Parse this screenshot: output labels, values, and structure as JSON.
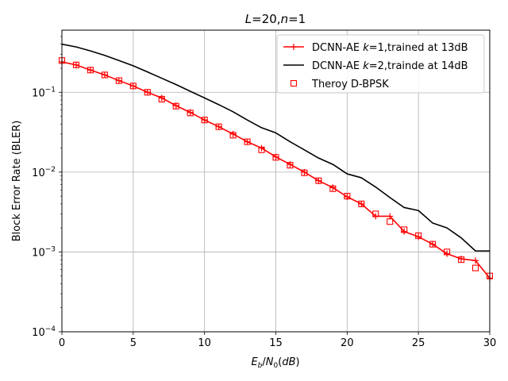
{
  "chart_data": {
    "type": "line",
    "title": "L=20,n=1",
    "title_parts": {
      "L_symbol": "L",
      "L_equals": "=20,",
      "n_symbol": "n",
      "n_equals": "=1"
    },
    "xlabel": "E_b/N_0(dB)",
    "xlabel_parts": {
      "E": "E",
      "b": "b",
      "slash": "/",
      "N": "N",
      "zero": "0",
      "paren_open": "(",
      "dB": "dB",
      "paren_close": ")"
    },
    "ylabel": "Block Error Rate (BLER)",
    "xlim": [
      0,
      30
    ],
    "ylim": [
      0.0001,
      0.6
    ],
    "y_scale": "log",
    "grid": true,
    "legend_position": "top-right",
    "x_ticks": [
      0,
      5,
      10,
      15,
      20,
      25,
      30
    ],
    "x_tick_labels": [
      "0",
      "5",
      "10",
      "15",
      "20",
      "25",
      "30"
    ],
    "y_ticks": [
      0.1,
      0.01,
      0.001,
      0.0001
    ],
    "y_tick_labels": [
      {
        "base": "10",
        "exp": "−1"
      },
      {
        "base": "10",
        "exp": "−2"
      },
      {
        "base": "10",
        "exp": "−3"
      },
      {
        "base": "10",
        "exp": "−4"
      }
    ],
    "series": [
      {
        "name_plain": "DCNN-AE k=1,trained at 13dB",
        "name_parts": {
          "pre": "DCNN-AE ",
          "k": "k",
          "post": "=1,trained at 13dB"
        },
        "color": "#ff0000",
        "style": "line-plus",
        "x": [
          0,
          1,
          2,
          3,
          4,
          5,
          6,
          7,
          8,
          9,
          10,
          11,
          12,
          13,
          14,
          15,
          16,
          17,
          18,
          19,
          20,
          21,
          22,
          23,
          24,
          25,
          26,
          27,
          28,
          29,
          30
        ],
        "y": [
          0.24,
          0.22,
          0.19,
          0.165,
          0.14,
          0.12,
          0.1,
          0.085,
          0.068,
          0.056,
          0.045,
          0.037,
          0.03,
          0.024,
          0.02,
          0.0155,
          0.0125,
          0.01,
          0.0078,
          0.0064,
          0.0049,
          0.004,
          0.0028,
          0.0028,
          0.0018,
          0.00155,
          0.00125,
          0.00095,
          0.00082,
          0.00078,
          0.00047
        ]
      },
      {
        "name_plain": "DCNN-AE k=2,trainde at 14dB",
        "name_parts": {
          "pre": "DCNN-AE ",
          "k": "k",
          "post": "=2,trainde at 14dB"
        },
        "color": "#000000",
        "style": "line",
        "x": [
          0,
          1,
          2,
          3,
          4,
          5,
          6,
          7,
          8,
          9,
          10,
          11,
          12,
          13,
          14,
          15,
          16,
          17,
          18,
          19,
          20,
          21,
          22,
          23,
          24,
          25,
          26,
          27,
          28,
          29,
          30
        ],
        "y": [
          0.4,
          0.37,
          0.33,
          0.29,
          0.25,
          0.215,
          0.18,
          0.15,
          0.125,
          0.103,
          0.085,
          0.07,
          0.057,
          0.045,
          0.036,
          0.031,
          0.024,
          0.019,
          0.015,
          0.0125,
          0.0095,
          0.0085,
          0.0065,
          0.0048,
          0.0036,
          0.0033,
          0.0023,
          0.002,
          0.0015,
          0.00103,
          0.00103
        ]
      },
      {
        "name_plain": "Theroy D-BPSK",
        "name_parts": {
          "pre": "Theroy D-BPSK",
          "k": "",
          "post": ""
        },
        "color": "#ff0000",
        "style": "marker-square",
        "x": [
          0,
          1,
          2,
          3,
          4,
          5,
          6,
          7,
          8,
          9,
          10,
          11,
          12,
          13,
          14,
          15,
          16,
          17,
          18,
          19,
          20,
          21,
          22,
          23,
          24,
          25,
          26,
          27,
          28,
          29,
          30
        ],
        "y": [
          0.25,
          0.22,
          0.19,
          0.165,
          0.14,
          0.12,
          0.1,
          0.082,
          0.067,
          0.055,
          0.045,
          0.037,
          0.029,
          0.024,
          0.019,
          0.0153,
          0.0122,
          0.0098,
          0.0078,
          0.0062,
          0.005,
          0.004,
          0.003,
          0.0024,
          0.0019,
          0.0016,
          0.00125,
          0.001,
          0.0008,
          0.00063,
          0.0005
        ]
      }
    ]
  }
}
